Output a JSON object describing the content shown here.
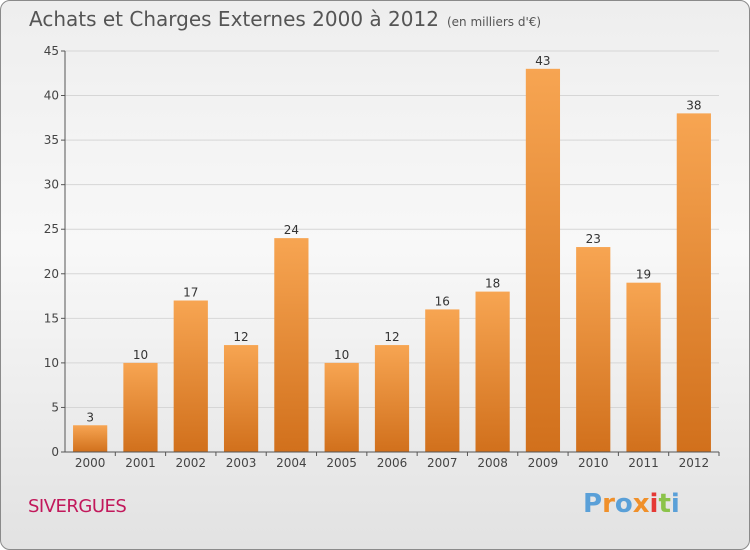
{
  "title": "Achats et Charges Externes 2000 à 2012",
  "unit": "(en milliers d'€)",
  "commune": "SIVERGUES",
  "logo": {
    "text": "Proxiti",
    "letters": [
      "P",
      "r",
      "o",
      "x",
      "i",
      "t",
      "i"
    ],
    "colors": [
      "#5aa0d8",
      "#f0902a",
      "#5aa0d8",
      "#f0902a",
      "#e53935",
      "#8bc34a",
      "#5aa0d8"
    ]
  },
  "colors": {
    "bar_top": "#f7a552",
    "bar_bottom": "#d1701c",
    "axis": "#555555",
    "grid": "#d6d6d6"
  },
  "chart_data": {
    "type": "bar",
    "title": "Achats et Charges Externes 2000 à 2012",
    "subtitle": "(en milliers d'€)",
    "categories": [
      "2000",
      "2001",
      "2002",
      "2003",
      "2004",
      "2005",
      "2006",
      "2007",
      "2008",
      "2009",
      "2010",
      "2011",
      "2012"
    ],
    "values": [
      3,
      10,
      17,
      12,
      24,
      10,
      12,
      16,
      18,
      43,
      23,
      19,
      38
    ],
    "ylim": [
      0,
      45
    ],
    "yticks": [
      0,
      5,
      10,
      15,
      20,
      25,
      30,
      35,
      40,
      45
    ],
    "grid": true,
    "data_labels": true
  }
}
